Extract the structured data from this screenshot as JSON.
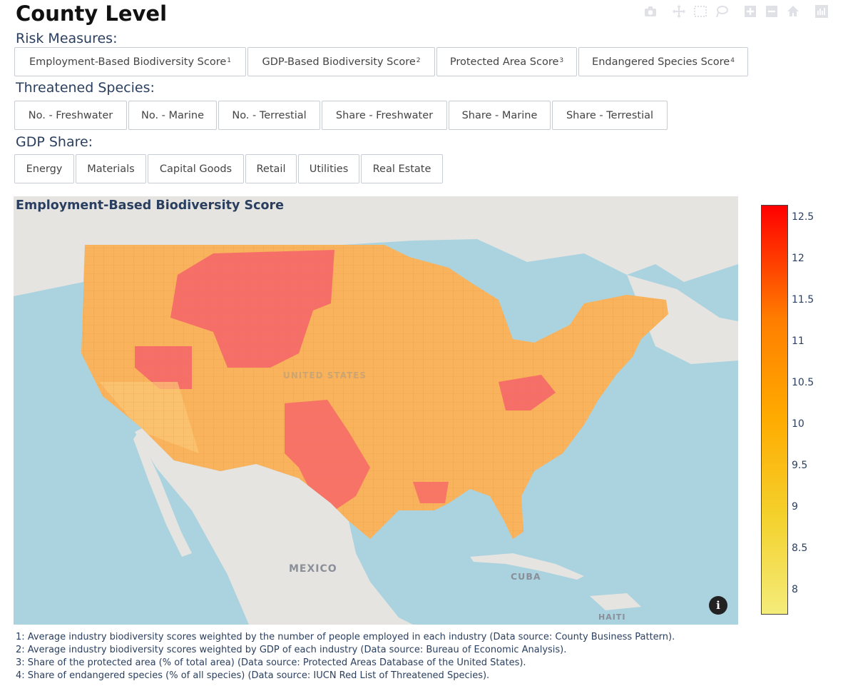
{
  "title": "County Level",
  "toolbar": {
    "icons": [
      "camera-icon",
      "pan-icon",
      "box-select-icon",
      "lasso-select-icon",
      "zoom-in-icon",
      "zoom-out-icon",
      "home-icon",
      "plotly-logo-icon"
    ]
  },
  "risk_measures": {
    "label": "Risk Measures:",
    "buttons": [
      {
        "label": "Employment-Based Biodiversity Score",
        "sup": "1"
      },
      {
        "label": "GDP-Based Biodiversity Score",
        "sup": "2"
      },
      {
        "label": "Protected Area Score",
        "sup": "3"
      },
      {
        "label": "Endangered Species Score",
        "sup": "4"
      }
    ]
  },
  "threatened_species": {
    "label": "Threatened Species:",
    "buttons": [
      "No. - Freshwater",
      "No. - Marine",
      "No. - Terrestial",
      "Share - Freshwater",
      "Share - Marine",
      "Share - Terrestial"
    ]
  },
  "gdp_share": {
    "label": "GDP Share:",
    "buttons": [
      "Energy",
      "Materials",
      "Capital Goods",
      "Retail",
      "Utilities",
      "Real Estate"
    ]
  },
  "map": {
    "title": "Employment-Based Biodiversity Score",
    "labels": {
      "us": "UNITED STATES",
      "mexico": "MEXICO",
      "cuba": "CUBA",
      "haiti": "HAITI"
    },
    "info_symbol": "i",
    "colors": {
      "water": "#aad3df",
      "land": "#e6e4e0",
      "us_base": "#f9b35c",
      "us_high": "#f6626a",
      "county_line": "#e9843c"
    }
  },
  "colorbar": {
    "ticks": [
      "12.5",
      "12",
      "11.5",
      "11",
      "10.5",
      "10",
      "9.5",
      "9",
      "8.5",
      "8"
    ],
    "range": [
      7.7,
      12.65
    ],
    "colorscale": [
      "#f4ec7a",
      "#f4d12c",
      "#ffab00",
      "#ff7e00",
      "#ff0000"
    ]
  },
  "footnotes": [
    "1: Average industry biodiversity scores weighted by the number of people employed in each industry (Data source: County Business Pattern).",
    "2: Average industry biodiversity scores weighted by GDP of each industry (Data source: Bureau of Economic Analysis).",
    "3: Share of the protected area (% of total area) (Data source: Protected Areas Database of the United States).",
    "4: Share of endangered species (% of all species) (Data source: IUCN Red List of Threatened Species)."
  ]
}
